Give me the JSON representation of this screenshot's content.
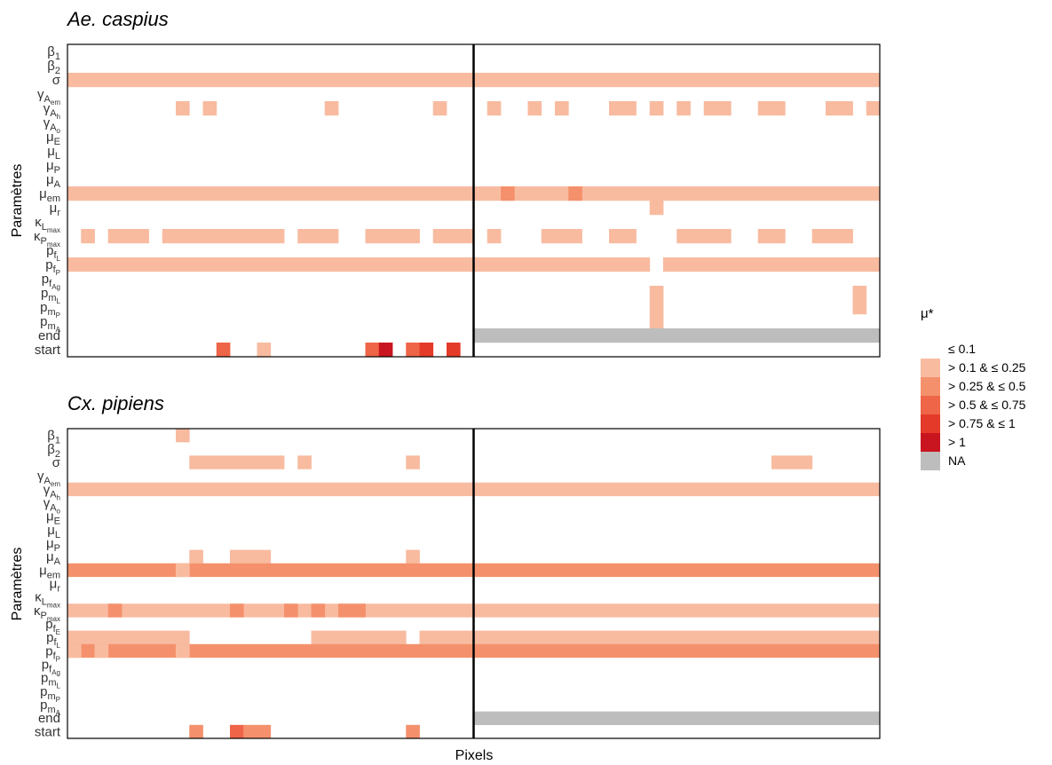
{
  "chart_data": [
    {
      "type": "heatmap",
      "title": "Ae. caspius",
      "xlabel": "Pixels",
      "ylabel": "Paramètres",
      "n_columns": 60,
      "vertical_line_after_column": 30,
      "rows": [
        {
          "name": "β1",
          "sym": "β",
          "sub": "1"
        },
        {
          "name": "β2",
          "sym": "β",
          "sub": "2"
        },
        {
          "name": "σ",
          "sym": "σ",
          "sub": ""
        },
        {
          "name": "γAem",
          "sym": "γ",
          "sub": "A",
          "sub2": "em"
        },
        {
          "name": "γAh",
          "sym": "γ",
          "sub": "A",
          "sub2": "h"
        },
        {
          "name": "γAo",
          "sym": "γ",
          "sub": "A",
          "sub2": "o"
        },
        {
          "name": "μE",
          "sym": "μ",
          "sub": "E"
        },
        {
          "name": "μL",
          "sym": "μ",
          "sub": "L"
        },
        {
          "name": "μP",
          "sym": "μ",
          "sub": "P"
        },
        {
          "name": "μA",
          "sym": "μ",
          "sub": "A"
        },
        {
          "name": "μem",
          "sym": "μ",
          "sub": "em"
        },
        {
          "name": "μr",
          "sym": "μ",
          "sub": "r"
        },
        {
          "name": "κLmax",
          "sym": "κ",
          "sub": "L",
          "sub2": "max"
        },
        {
          "name": "κPmax",
          "sym": "κ",
          "sub": "P",
          "sub2": "max"
        },
        {
          "name": "pfL",
          "sym": "p",
          "sub": "f",
          "sub2": "L"
        },
        {
          "name": "pfP",
          "sym": "p",
          "sub": "f",
          "sub2": "P"
        },
        {
          "name": "pfAg",
          "sym": "p",
          "sub": "f",
          "sub2": "Ag"
        },
        {
          "name": "pmL",
          "sym": "p",
          "sub": "m",
          "sub2": "L"
        },
        {
          "name": "pmP",
          "sym": "p",
          "sub": "m",
          "sub2": "P"
        },
        {
          "name": "pmA",
          "sym": "p",
          "sub": "m",
          "sub2": "A"
        },
        {
          "name": "end",
          "sym": "end",
          "sub": ""
        },
        {
          "name": "start",
          "sym": "start",
          "sub": ""
        }
      ],
      "cells": [
        [
          "σ",
          0,
          59,
          1
        ],
        [
          "γAh",
          8,
          8,
          1
        ],
        [
          "γAh",
          10,
          10,
          1
        ],
        [
          "γAh",
          19,
          19,
          1
        ],
        [
          "γAh",
          27,
          27,
          1
        ],
        [
          "γAh",
          31,
          31,
          1
        ],
        [
          "γAh",
          34,
          34,
          1
        ],
        [
          "γAh",
          36,
          36,
          1
        ],
        [
          "γAh",
          40,
          41,
          1
        ],
        [
          "γAh",
          43,
          43,
          1
        ],
        [
          "γAh",
          45,
          45,
          1
        ],
        [
          "γAh",
          47,
          48,
          1
        ],
        [
          "γAh",
          51,
          52,
          1
        ],
        [
          "γAh",
          56,
          57,
          1
        ],
        [
          "γAh",
          59,
          59,
          1
        ],
        [
          "μem",
          0,
          59,
          1
        ],
        [
          "μem",
          32,
          32,
          2
        ],
        [
          "μem",
          37,
          37,
          2
        ],
        [
          "μr",
          43,
          43,
          1
        ],
        [
          "κPmax",
          1,
          1,
          1
        ],
        [
          "κPmax",
          3,
          5,
          1
        ],
        [
          "κPmax",
          7,
          15,
          1
        ],
        [
          "κPmax",
          17,
          19,
          1
        ],
        [
          "κPmax",
          22,
          25,
          1
        ],
        [
          "κPmax",
          27,
          29,
          1
        ],
        [
          "κPmax",
          31,
          31,
          1
        ],
        [
          "κPmax",
          35,
          37,
          1
        ],
        [
          "κPmax",
          40,
          41,
          1
        ],
        [
          "κPmax",
          45,
          48,
          1
        ],
        [
          "κPmax",
          51,
          52,
          1
        ],
        [
          "κPmax",
          55,
          57,
          1
        ],
        [
          "pfP",
          0,
          42,
          1
        ],
        [
          "pfP",
          44,
          59,
          1
        ],
        [
          "pmL",
          43,
          43,
          1
        ],
        [
          "pmP",
          43,
          43,
          1
        ],
        [
          "pmA",
          43,
          43,
          1
        ],
        [
          "pmL",
          58,
          58,
          1
        ],
        [
          "pmP",
          58,
          58,
          1
        ],
        [
          "end",
          30,
          59,
          6
        ],
        [
          "start",
          11,
          11,
          3
        ],
        [
          "start",
          14,
          14,
          1
        ],
        [
          "start",
          22,
          22,
          3
        ],
        [
          "start",
          23,
          23,
          5
        ],
        [
          "start",
          25,
          25,
          3
        ],
        [
          "start",
          26,
          26,
          4
        ],
        [
          "start",
          28,
          28,
          4
        ]
      ]
    },
    {
      "type": "heatmap",
      "title": "Cx. pipiens",
      "xlabel": "Pixels",
      "ylabel": "Paramètres",
      "n_columns": 60,
      "vertical_line_after_column": 30,
      "rows": [
        {
          "name": "β1",
          "sym": "β",
          "sub": "1"
        },
        {
          "name": "β2",
          "sym": "β",
          "sub": "2"
        },
        {
          "name": "σ",
          "sym": "σ",
          "sub": ""
        },
        {
          "name": "γAem",
          "sym": "γ",
          "sub": "A",
          "sub2": "em"
        },
        {
          "name": "γAh",
          "sym": "γ",
          "sub": "A",
          "sub2": "h"
        },
        {
          "name": "γAo",
          "sym": "γ",
          "sub": "A",
          "sub2": "o"
        },
        {
          "name": "μE",
          "sym": "μ",
          "sub": "E"
        },
        {
          "name": "μL",
          "sym": "μ",
          "sub": "L"
        },
        {
          "name": "μP",
          "sym": "μ",
          "sub": "P"
        },
        {
          "name": "μA",
          "sym": "μ",
          "sub": "A"
        },
        {
          "name": "μem",
          "sym": "μ",
          "sub": "em"
        },
        {
          "name": "μr",
          "sym": "μ",
          "sub": "r"
        },
        {
          "name": "κLmax",
          "sym": "κ",
          "sub": "L",
          "sub2": "max"
        },
        {
          "name": "κPmax",
          "sym": "κ",
          "sub": "P",
          "sub2": "max"
        },
        {
          "name": "pfE",
          "sym": "p",
          "sub": "f",
          "sub2": "E"
        },
        {
          "name": "pfL",
          "sym": "p",
          "sub": "f",
          "sub2": "L"
        },
        {
          "name": "pfP",
          "sym": "p",
          "sub": "f",
          "sub2": "P"
        },
        {
          "name": "pfAg",
          "sym": "p",
          "sub": "f",
          "sub2": "Ag"
        },
        {
          "name": "pmL",
          "sym": "p",
          "sub": "m",
          "sub2": "L"
        },
        {
          "name": "pmP",
          "sym": "p",
          "sub": "m",
          "sub2": "P"
        },
        {
          "name": "pmA",
          "sym": "p",
          "sub": "m",
          "sub2": "A"
        },
        {
          "name": "end",
          "sym": "end",
          "sub": ""
        },
        {
          "name": "start",
          "sym": "start",
          "sub": ""
        }
      ],
      "cells": [
        [
          "β1",
          8,
          8,
          1
        ],
        [
          "σ",
          9,
          15,
          1
        ],
        [
          "σ",
          17,
          17,
          1
        ],
        [
          "σ",
          25,
          25,
          1
        ],
        [
          "σ",
          52,
          54,
          1
        ],
        [
          "γAh",
          0,
          59,
          1
        ],
        [
          "μA",
          9,
          9,
          1
        ],
        [
          "μA",
          12,
          14,
          1
        ],
        [
          "μA",
          25,
          25,
          1
        ],
        [
          "μem",
          0,
          59,
          2
        ],
        [
          "μem",
          8,
          8,
          1
        ],
        [
          "κPmax",
          0,
          59,
          1
        ],
        [
          "κPmax",
          3,
          3,
          2
        ],
        [
          "κPmax",
          12,
          12,
          2
        ],
        [
          "κPmax",
          16,
          16,
          2
        ],
        [
          "κPmax",
          18,
          18,
          2
        ],
        [
          "κPmax",
          20,
          21,
          2
        ],
        [
          "pfL",
          0,
          8,
          1
        ],
        [
          "pfL",
          18,
          24,
          1
        ],
        [
          "pfL",
          26,
          59,
          1
        ],
        [
          "pfP",
          0,
          59,
          2
        ],
        [
          "pfP",
          0,
          0,
          1
        ],
        [
          "pfP",
          2,
          2,
          1
        ],
        [
          "pfP",
          8,
          8,
          1
        ],
        [
          "end",
          30,
          59,
          6
        ],
        [
          "start",
          9,
          9,
          2
        ],
        [
          "start",
          12,
          12,
          3
        ],
        [
          "start",
          13,
          14,
          2
        ],
        [
          "start",
          25,
          25,
          2
        ]
      ]
    }
  ],
  "legend": {
    "title": "μ*",
    "items": [
      {
        "label": "≤ 0.1",
        "color": "#ffffff"
      },
      {
        "label": "> 0.1 & ≤ 0.25",
        "color": "#f8bba0"
      },
      {
        "label": "> 0.25 & ≤ 0.5",
        "color": "#f4916c"
      },
      {
        "label": "> 0.5 & ≤ 0.75",
        "color": "#ef6548"
      },
      {
        "label": "> 0.75 & ≤ 1",
        "color": "#e43a2a"
      },
      {
        "label": "> 1",
        "color": "#c9151f"
      },
      {
        "label": "NA",
        "color": "#bdbdbd"
      }
    ]
  }
}
